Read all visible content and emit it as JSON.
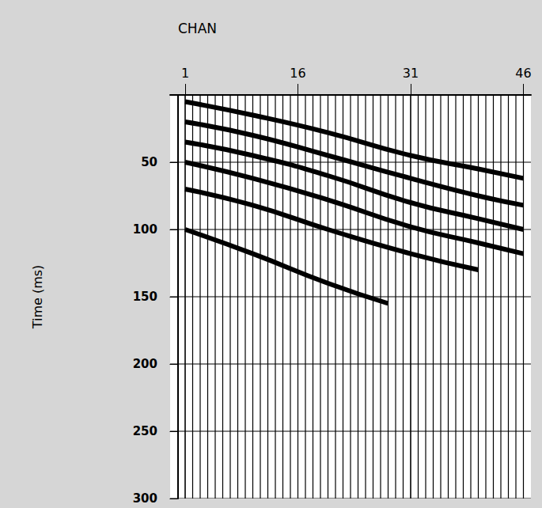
{
  "chart_data": {
    "type": "seismic",
    "x_label": "CHAN",
    "y_label": "Time (ms)",
    "x": [
      1,
      2,
      3,
      4,
      5,
      6,
      7,
      8,
      9,
      10,
      11,
      12,
      13,
      14,
      15,
      16,
      17,
      18,
      19,
      20,
      21,
      22,
      23,
      24,
      25,
      26,
      27,
      28,
      29,
      30,
      31,
      32,
      33,
      34,
      35,
      36,
      37,
      38,
      39,
      40,
      41,
      42,
      43,
      44,
      45,
      46
    ],
    "xlim": [
      -1,
      47
    ],
    "xticks": [
      1,
      16,
      31,
      46
    ],
    "ylim": [
      0,
      300
    ],
    "yticks": [
      50,
      100,
      150,
      200,
      250,
      300
    ],
    "grid": true,
    "series": [
      {
        "color": "#000000",
        "x": [
          1,
          10,
          20,
          31,
          40,
          46
        ],
        "values": [
          5,
          15,
          28,
          45,
          55,
          62
        ]
      },
      {
        "color": "#000000",
        "x": [
          1,
          10,
          20,
          31,
          40,
          46
        ],
        "values": [
          20,
          30,
          45,
          62,
          75,
          82
        ]
      },
      {
        "color": "#000000",
        "x": [
          1,
          10,
          20,
          31,
          40,
          46
        ],
        "values": [
          35,
          45,
          60,
          80,
          92,
          100
        ]
      },
      {
        "color": "#000000",
        "x": [
          1,
          10,
          20,
          31,
          40,
          46
        ],
        "values": [
          50,
          62,
          78,
          98,
          110,
          118
        ]
      },
      {
        "color": "#000000",
        "x": [
          1,
          10,
          20,
          31,
          40
        ],
        "values": [
          70,
          82,
          100,
          118,
          130
        ]
      },
      {
        "color": "#000000",
        "x": [
          1,
          10,
          20,
          28
        ],
        "values": [
          100,
          118,
          140,
          155
        ]
      }
    ]
  }
}
